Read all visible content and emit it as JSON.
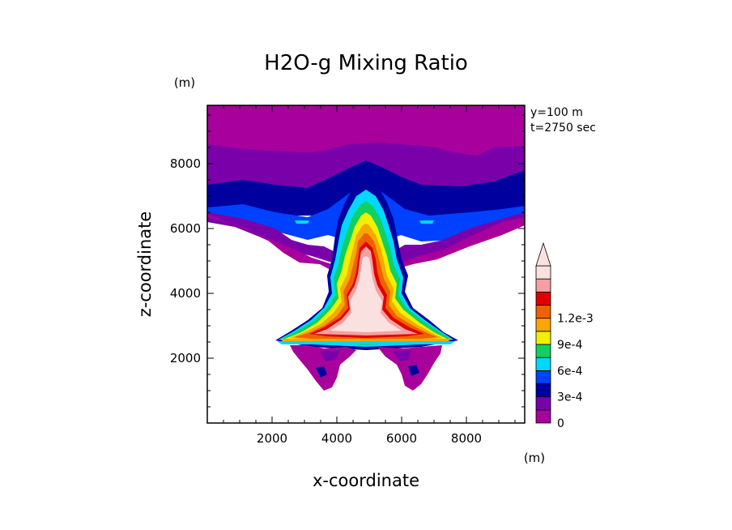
{
  "chart_data": {
    "type": "heatmap",
    "title": "H2O-g Mixing Ratio",
    "xlabel": "x-coordinate",
    "ylabel": "z-coordinate",
    "x_unit": "(m)",
    "y_unit": "(m)",
    "annotations": [
      "y=100 m",
      "t=2750 sec"
    ],
    "xlim": [
      0,
      9800
    ],
    "ylim": [
      0,
      9800
    ],
    "xticks": [
      "2000",
      "4000",
      "6000",
      "8000"
    ],
    "yticks": [
      "2000",
      "4000",
      "6000",
      "8000"
    ],
    "colorbar": {
      "levels": [
        0,
        0.00015,
        0.0003,
        0.00045,
        0.0006,
        0.00075,
        0.0009,
        0.00105,
        0.0012
      ],
      "tick_labels": [
        "0",
        "3e-4",
        "6e-4",
        "9e-4",
        "1.2e-3"
      ],
      "colors": [
        "#a8009c",
        "#7a00aa",
        "#00009e",
        "#0040ff",
        "#00d8ff",
        "#10d060",
        "#f0f000",
        "#f8a800",
        "#f06000",
        "#e00000",
        "#f4a0a0",
        "#fbe0e0"
      ],
      "extend": "max"
    }
  }
}
